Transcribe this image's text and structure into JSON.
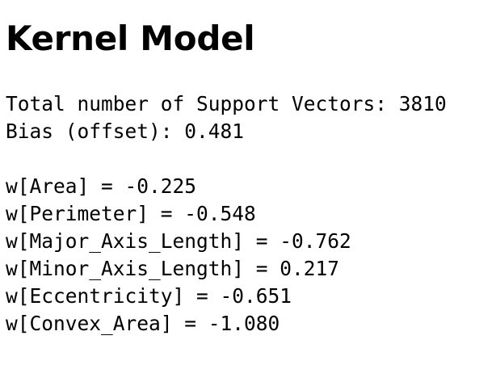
{
  "title": "Kernel Model",
  "summary": {
    "support_vectors_line": "Total number of Support Vectors: 3810",
    "bias_line": "Bias (offset): 0.481"
  },
  "weights": [
    "w[Area] = -0.225",
    "w[Perimeter] = -0.548",
    "w[Major_Axis_Length] = -0.762",
    "w[Minor_Axis_Length] = 0.217",
    "w[Eccentricity] = -0.651",
    "w[Convex_Area] = -1.080"
  ]
}
